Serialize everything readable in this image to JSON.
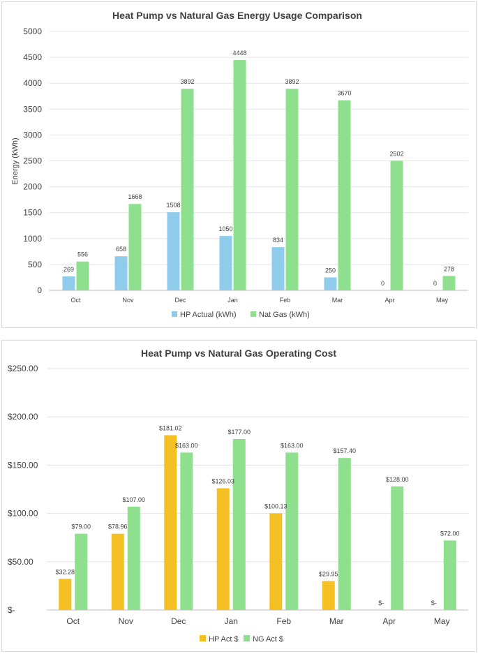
{
  "chart_data": [
    {
      "type": "bar",
      "title": "Heat Pump vs Natural Gas Energy Usage Comparison",
      "xlabel": "",
      "ylabel": "Energy (kWh)",
      "ylim": [
        0,
        5000
      ],
      "yticks": [
        "0",
        "500",
        "1000",
        "1500",
        "2000",
        "2500",
        "3000",
        "3500",
        "4000",
        "4500",
        "5000"
      ],
      "grid": true,
      "legend_position": "bottom",
      "categories": [
        "Oct",
        "Nov",
        "Dec",
        "Jan",
        "Feb",
        "Mar",
        "Apr",
        "May"
      ],
      "series": [
        {
          "name": "HP Actual (kWh)",
          "color": "#8fcbea",
          "values": [
            269,
            658,
            1508,
            1050,
            834,
            250,
            0,
            0
          ],
          "labels": [
            "269",
            "658",
            "1508",
            "1050",
            "834",
            "250",
            "0",
            "0"
          ]
        },
        {
          "name": "Nat Gas (kWh)",
          "color": "#8ee08e",
          "values": [
            556,
            1668,
            3892,
            4448,
            3892,
            3670,
            2502,
            278
          ],
          "labels": [
            "556",
            "1668",
            "3892",
            "4448",
            "3892",
            "3670",
            "2502",
            "278"
          ]
        }
      ]
    },
    {
      "type": "bar",
      "title": "Heat Pump vs Natural Gas Operating Cost",
      "xlabel": "",
      "ylabel": "",
      "ylim": [
        0,
        250
      ],
      "yticks": [
        "$-",
        "$50.00",
        "$100.00",
        "$150.00",
        "$200.00",
        "$250.00"
      ],
      "grid": true,
      "legend_position": "bottom",
      "categories": [
        "Oct",
        "Nov",
        "Dec",
        "Jan",
        "Feb",
        "Mar",
        "Apr",
        "May"
      ],
      "series": [
        {
          "name": "HP Act $",
          "color": "#f5c024",
          "values": [
            32.28,
            78.96,
            181.02,
            126.03,
            100.13,
            29.95,
            0,
            0
          ],
          "labels": [
            "$32.28",
            "$78.96",
            "$181.02",
            "$126.03",
            "$100.13",
            "$29.95",
            "$-",
            "$-"
          ]
        },
        {
          "name": "NG Act $",
          "color": "#8ee08e",
          "values": [
            79,
            107,
            163,
            177,
            163,
            157.4,
            128,
            72
          ],
          "labels": [
            "$79.00",
            "$107.00",
            "$163.00",
            "$177.00",
            "$163.00",
            "$157.40",
            "$128.00",
            "$72.00"
          ]
        }
      ]
    }
  ]
}
